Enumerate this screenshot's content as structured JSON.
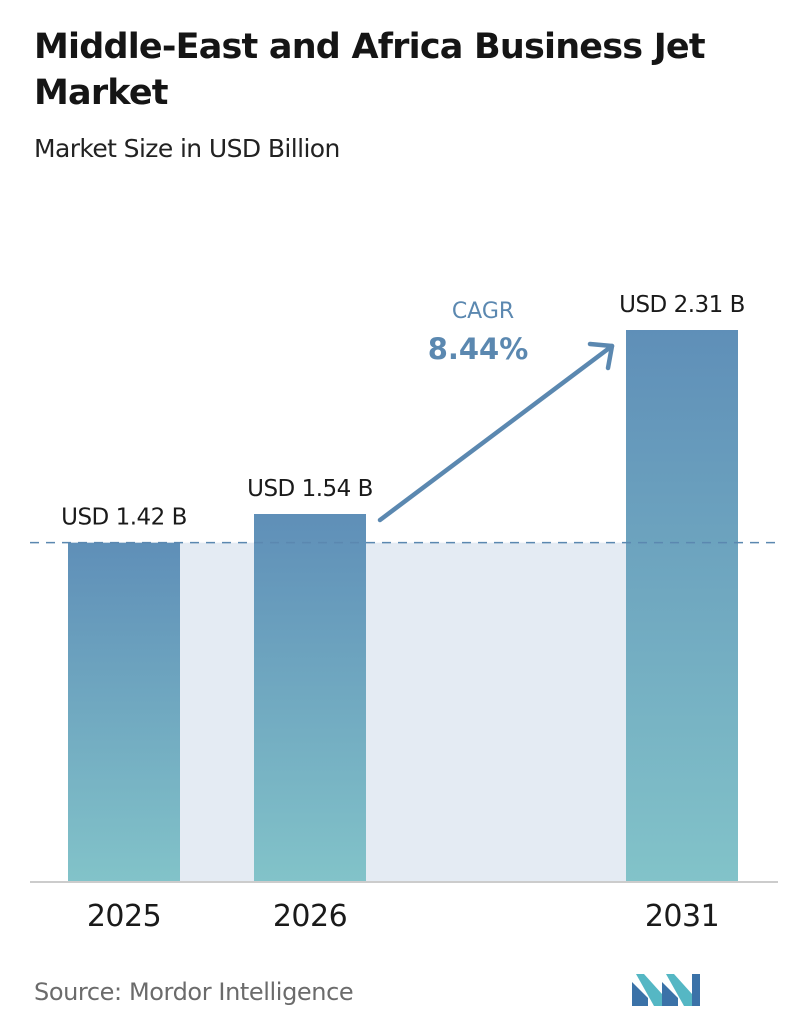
{
  "header": {
    "title": "Middle-East and Africa Business Jet Market",
    "subtitle": "Market Size in USD Billion"
  },
  "chart_data": {
    "type": "bar",
    "title": "Middle-East and Africa Business Jet Market",
    "subtitle": "Market Size in USD Billion",
    "categories": [
      "2025",
      "2026",
      "2031"
    ],
    "values": [
      1.42,
      1.54,
      2.31
    ],
    "data_labels": [
      "USD 1.42 B",
      "USD 1.54 B",
      "USD 2.31 B"
    ],
    "cagr": {
      "label": "CAGR",
      "value": "8.44%"
    },
    "reference_line_value": 1.42,
    "ylim": [
      0,
      2.31
    ],
    "grid": false,
    "colors": {
      "bar_top": "#5f8fb8",
      "bar_bottom": "#82c3c9",
      "band": "#e4ebf3",
      "dashed_line": "#5b88b0",
      "arrow": "#5b88b0",
      "cagr_text": "#5b88b0",
      "axis": "#cccccc"
    }
  },
  "footer": {
    "source": "Source:  Mordor Intelligence",
    "logo_name": "mordor-intelligence-logo"
  }
}
